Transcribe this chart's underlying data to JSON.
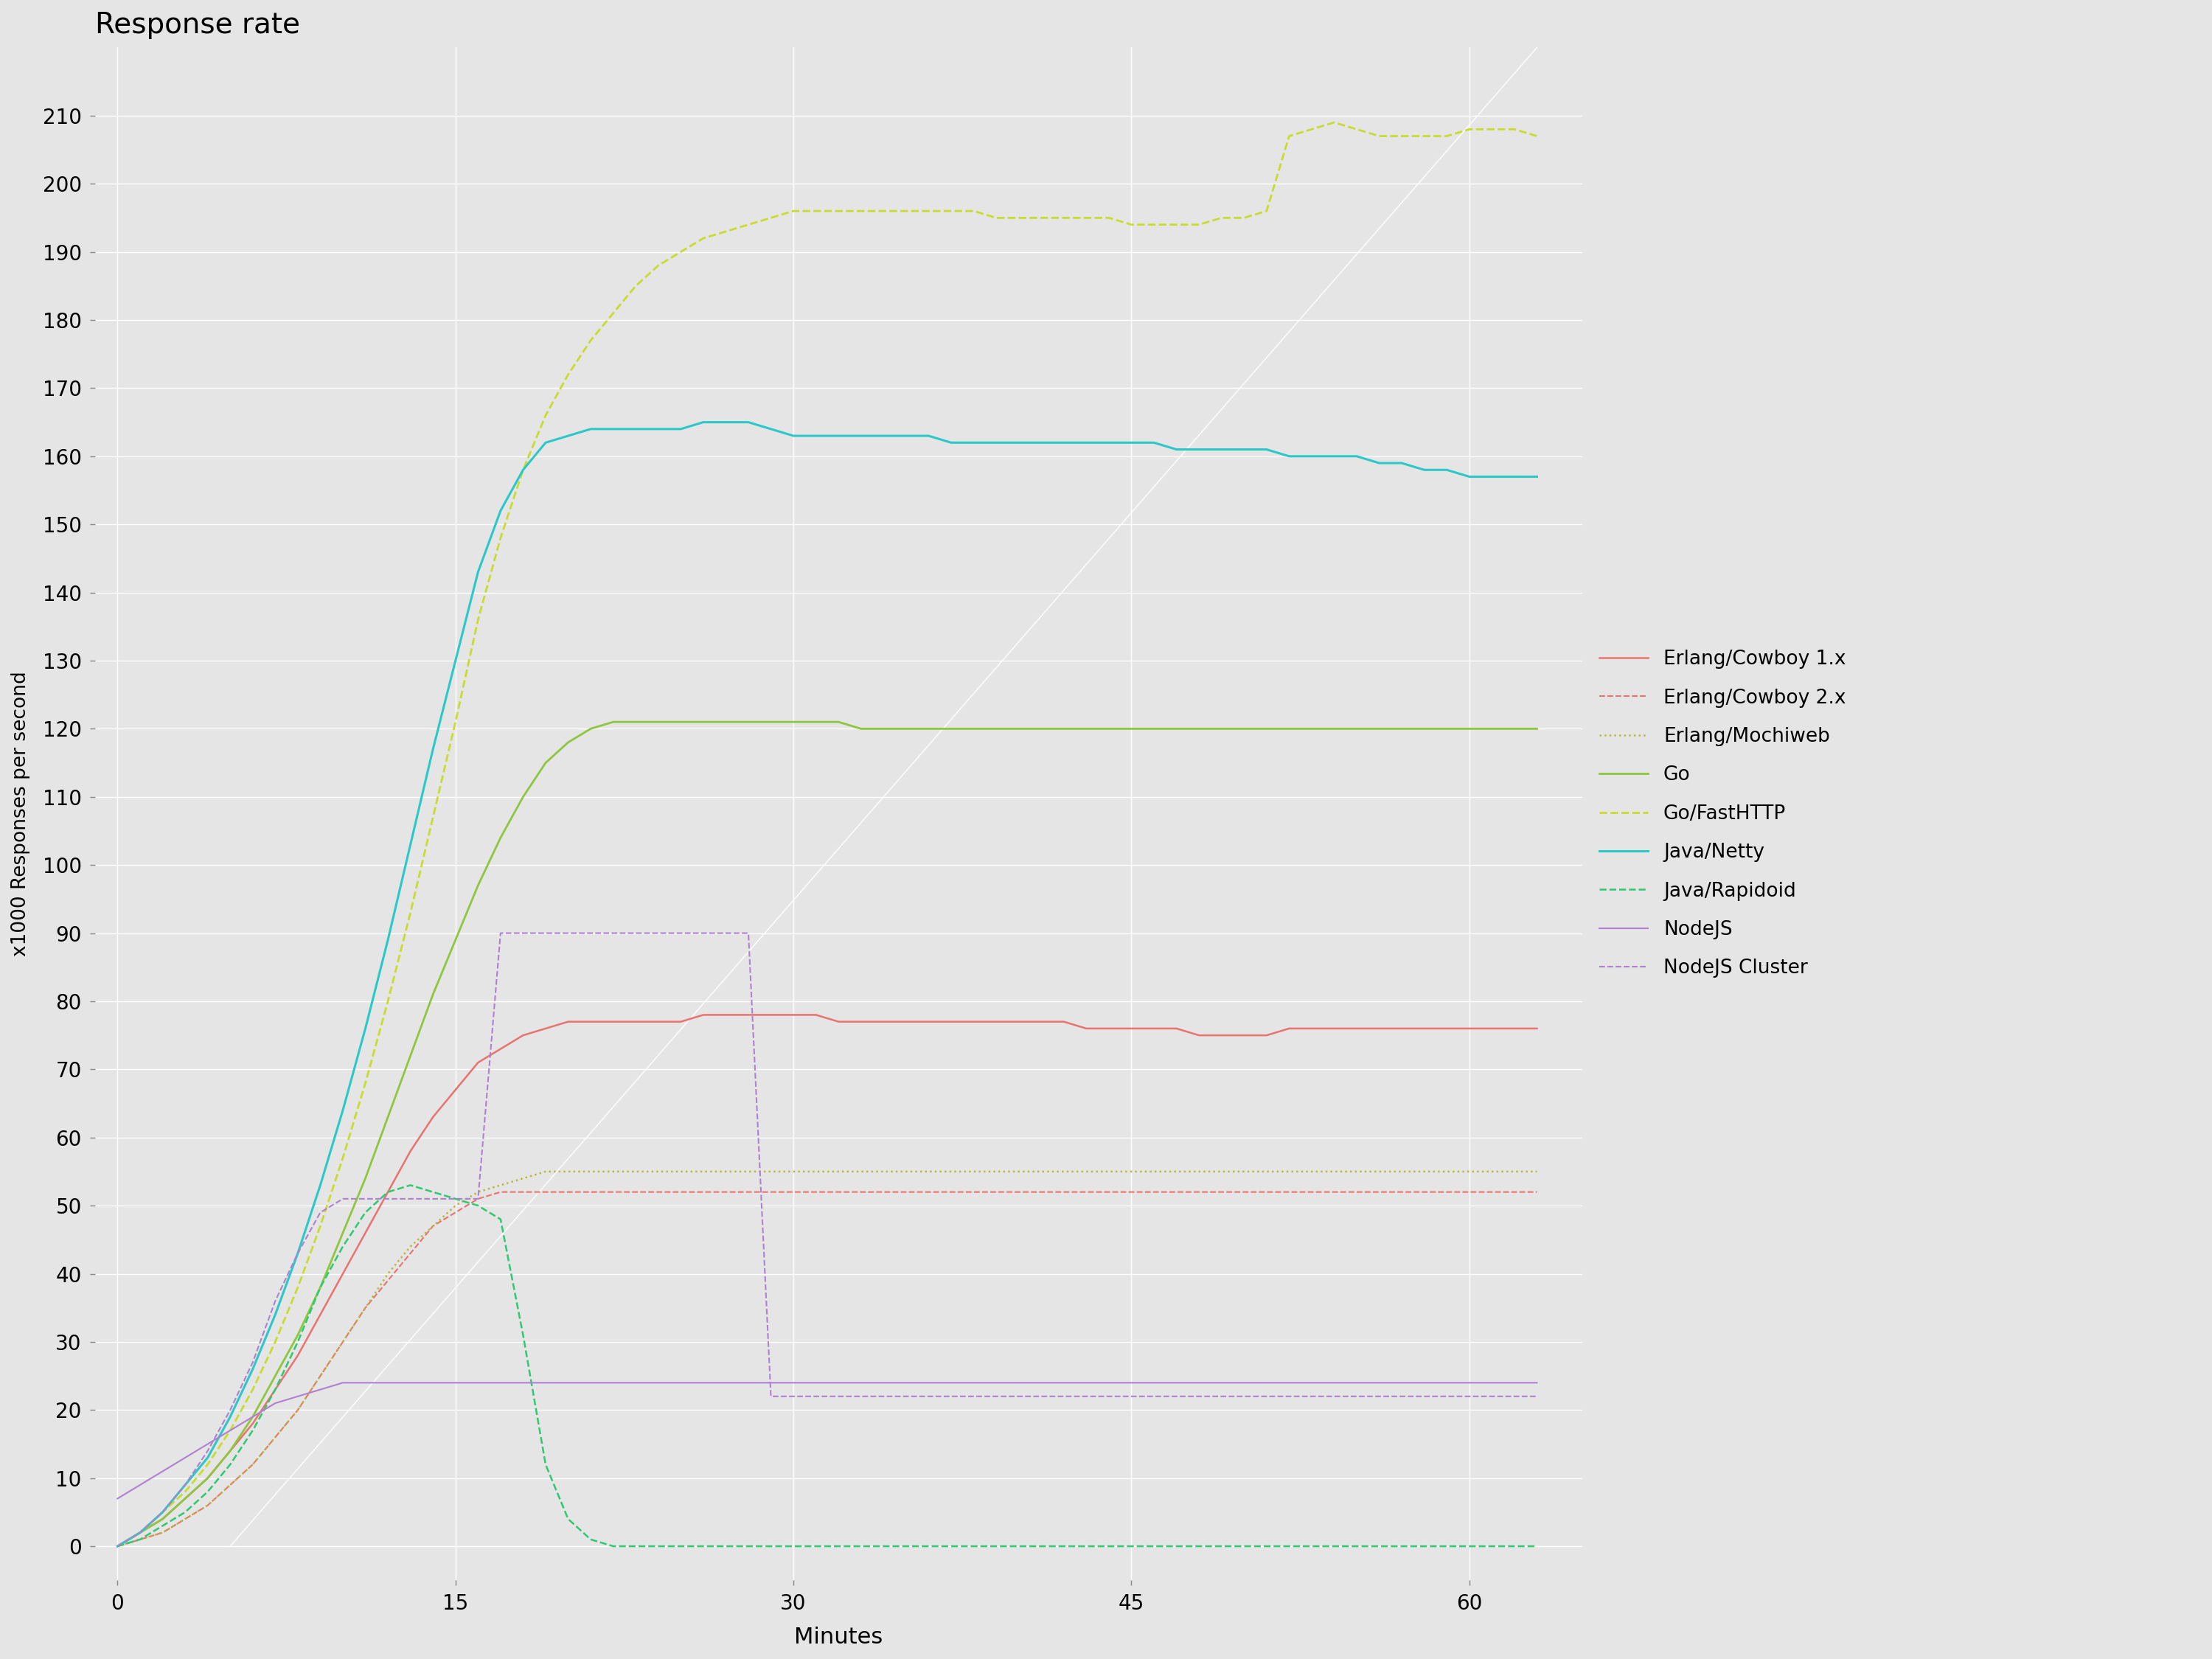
{
  "title": "Response rate",
  "xlabel": "Minutes",
  "ylabel": "x1000 Responses per second",
  "xlim": [
    -1,
    65
  ],
  "ylim": [
    -5,
    220
  ],
  "xticks": [
    0,
    15,
    30,
    45,
    60
  ],
  "yticks": [
    0,
    10,
    20,
    30,
    40,
    50,
    60,
    70,
    80,
    90,
    100,
    110,
    120,
    130,
    140,
    150,
    160,
    170,
    180,
    190,
    200,
    210
  ],
  "background_color": "#e5e5e5",
  "grid_color": "#ffffff",
  "series": {
    "erlang_cowboy1": {
      "label": "Erlang/Cowboy 1.x",
      "color": "#e8736f",
      "linestyle": "-",
      "linewidth": 1.8,
      "x": [
        0,
        1,
        2,
        3,
        4,
        5,
        6,
        7,
        8,
        9,
        10,
        11,
        12,
        13,
        14,
        15,
        16,
        17,
        18,
        19,
        20,
        21,
        22,
        23,
        24,
        25,
        26,
        27,
        28,
        29,
        30,
        31,
        32,
        33,
        34,
        35,
        36,
        37,
        38,
        39,
        40,
        41,
        42,
        43,
        44,
        45,
        46,
        47,
        48,
        49,
        50,
        51,
        52,
        53,
        54,
        55,
        56,
        57,
        58,
        59,
        60,
        61,
        62,
        63
      ],
      "y": [
        0,
        2,
        4,
        7,
        10,
        14,
        18,
        23,
        28,
        34,
        40,
        46,
        52,
        58,
        63,
        67,
        71,
        73,
        75,
        76,
        77,
        77,
        77,
        77,
        77,
        77,
        78,
        78,
        78,
        78,
        78,
        78,
        77,
        77,
        77,
        77,
        77,
        77,
        77,
        77,
        77,
        77,
        77,
        76,
        76,
        76,
        76,
        76,
        75,
        75,
        75,
        75,
        76,
        76,
        76,
        76,
        76,
        76,
        76,
        76,
        76,
        76,
        76,
        76
      ]
    },
    "erlang_cowboy2": {
      "label": "Erlang/Cowboy 2.x",
      "color": "#e8736f",
      "linestyle": "--",
      "linewidth": 1.5,
      "x": [
        0,
        1,
        2,
        3,
        4,
        5,
        6,
        7,
        8,
        9,
        10,
        11,
        12,
        13,
        14,
        15,
        16,
        17,
        18,
        19,
        20,
        21,
        22,
        23,
        24,
        25,
        26,
        27,
        28,
        29,
        30,
        31,
        32,
        33,
        34,
        35,
        36,
        37,
        38,
        39,
        40,
        41,
        42,
        43,
        44,
        45,
        46,
        47,
        48,
        49,
        50,
        51,
        52,
        53,
        54,
        55,
        56,
        57,
        58,
        59,
        60,
        61,
        62,
        63
      ],
      "y": [
        0,
        1,
        2,
        4,
        6,
        9,
        12,
        16,
        20,
        25,
        30,
        35,
        39,
        43,
        47,
        49,
        51,
        52,
        52,
        52,
        52,
        52,
        52,
        52,
        52,
        52,
        52,
        52,
        52,
        52,
        52,
        52,
        52,
        52,
        52,
        52,
        52,
        52,
        52,
        52,
        52,
        52,
        52,
        52,
        52,
        52,
        52,
        52,
        52,
        52,
        52,
        52,
        52,
        52,
        52,
        52,
        52,
        52,
        52,
        52,
        52,
        52,
        52,
        52
      ]
    },
    "erlang_mochiweb": {
      "label": "Erlang/Mochiweb",
      "color": "#b8b840",
      "linestyle": ":",
      "linewidth": 1.8,
      "x": [
        0,
        1,
        2,
        3,
        4,
        5,
        6,
        7,
        8,
        9,
        10,
        11,
        12,
        13,
        14,
        15,
        16,
        17,
        18,
        19,
        20,
        21,
        22,
        23,
        24,
        25,
        26,
        27,
        28,
        29,
        30,
        31,
        32,
        33,
        34,
        35,
        36,
        37,
        38,
        39,
        40,
        41,
        42,
        43,
        44,
        45,
        46,
        47,
        48,
        49,
        50,
        51,
        52,
        53,
        54,
        55,
        56,
        57,
        58,
        59,
        60,
        61,
        62,
        63
      ],
      "y": [
        0,
        1,
        2,
        4,
        6,
        9,
        12,
        16,
        20,
        25,
        30,
        35,
        40,
        44,
        47,
        50,
        52,
        53,
        54,
        55,
        55,
        55,
        55,
        55,
        55,
        55,
        55,
        55,
        55,
        55,
        55,
        55,
        55,
        55,
        55,
        55,
        55,
        55,
        55,
        55,
        55,
        55,
        55,
        55,
        55,
        55,
        55,
        55,
        55,
        55,
        55,
        55,
        55,
        55,
        55,
        55,
        55,
        55,
        55,
        55,
        55,
        55,
        55,
        55
      ]
    },
    "go": {
      "label": "Go",
      "color": "#8ec63f",
      "linestyle": "-",
      "linewidth": 2.0,
      "x": [
        0,
        1,
        2,
        3,
        4,
        5,
        6,
        7,
        8,
        9,
        10,
        11,
        12,
        13,
        14,
        15,
        16,
        17,
        18,
        19,
        20,
        21,
        22,
        23,
        24,
        25,
        26,
        27,
        28,
        29,
        30,
        31,
        32,
        33,
        34,
        35,
        36,
        37,
        38,
        39,
        40,
        41,
        42,
        43,
        44,
        45,
        46,
        47,
        48,
        49,
        50,
        51,
        52,
        53,
        54,
        55,
        56,
        57,
        58,
        59,
        60,
        61,
        62,
        63
      ],
      "y": [
        0,
        2,
        4,
        7,
        10,
        14,
        19,
        25,
        31,
        38,
        46,
        54,
        63,
        72,
        81,
        89,
        97,
        104,
        110,
        115,
        118,
        120,
        121,
        121,
        121,
        121,
        121,
        121,
        121,
        121,
        121,
        121,
        121,
        120,
        120,
        120,
        120,
        120,
        120,
        120,
        120,
        120,
        120,
        120,
        120,
        120,
        120,
        120,
        120,
        120,
        120,
        120,
        120,
        120,
        120,
        120,
        120,
        120,
        120,
        120,
        120,
        120,
        120,
        120
      ]
    },
    "go_fasthttp": {
      "label": "Go/FastHTTP",
      "color": "#c8dc30",
      "linestyle": "--",
      "linewidth": 2.0,
      "x": [
        0,
        1,
        2,
        3,
        4,
        5,
        6,
        7,
        8,
        9,
        10,
        11,
        12,
        13,
        14,
        15,
        16,
        17,
        18,
        19,
        20,
        21,
        22,
        23,
        24,
        25,
        26,
        27,
        28,
        29,
        30,
        31,
        32,
        33,
        34,
        35,
        36,
        37,
        38,
        39,
        40,
        41,
        42,
        43,
        44,
        45,
        46,
        47,
        48,
        49,
        50,
        51,
        52,
        53,
        54,
        55,
        56,
        57,
        58,
        59,
        60,
        61,
        62,
        63
      ],
      "y": [
        0,
        2,
        5,
        8,
        12,
        17,
        23,
        30,
        38,
        47,
        57,
        68,
        80,
        93,
        107,
        121,
        136,
        148,
        158,
        166,
        172,
        177,
        181,
        185,
        188,
        190,
        192,
        193,
        194,
        195,
        196,
        196,
        196,
        196,
        196,
        196,
        196,
        196,
        196,
        195,
        195,
        195,
        195,
        195,
        195,
        194,
        194,
        194,
        194,
        195,
        195,
        196,
        207,
        208,
        209,
        208,
        207,
        207,
        207,
        207,
        208,
        208,
        208,
        207
      ]
    },
    "java_netty": {
      "label": "Java/Netty",
      "color": "#2cc8c8",
      "linestyle": "-",
      "linewidth": 2.2,
      "x": [
        0,
        1,
        2,
        3,
        4,
        5,
        6,
        7,
        8,
        9,
        10,
        11,
        12,
        13,
        14,
        15,
        16,
        17,
        18,
        19,
        20,
        21,
        22,
        23,
        24,
        25,
        26,
        27,
        28,
        29,
        30,
        31,
        32,
        33,
        34,
        35,
        36,
        37,
        38,
        39,
        40,
        41,
        42,
        43,
        44,
        45,
        46,
        47,
        48,
        49,
        50,
        51,
        52,
        53,
        54,
        55,
        56,
        57,
        58,
        59,
        60,
        61,
        62,
        63
      ],
      "y": [
        0,
        2,
        5,
        9,
        13,
        19,
        26,
        34,
        43,
        53,
        64,
        76,
        89,
        103,
        117,
        130,
        143,
        152,
        158,
        162,
        163,
        164,
        164,
        164,
        164,
        164,
        165,
        165,
        165,
        164,
        163,
        163,
        163,
        163,
        163,
        163,
        163,
        162,
        162,
        162,
        162,
        162,
        162,
        162,
        162,
        162,
        162,
        161,
        161,
        161,
        161,
        161,
        160,
        160,
        160,
        160,
        159,
        159,
        158,
        158,
        157,
        157,
        157,
        157
      ]
    },
    "java_rapidoid": {
      "label": "Java/Rapidoid",
      "color": "#30c870",
      "linestyle": "--",
      "linewidth": 1.8,
      "x": [
        0,
        1,
        2,
        3,
        4,
        5,
        6,
        7,
        8,
        9,
        10,
        11,
        12,
        13,
        14,
        15,
        16,
        17,
        18,
        19,
        20,
        21,
        22,
        23,
        24,
        25,
        26,
        27,
        28,
        29,
        30,
        31,
        32,
        33,
        34,
        35,
        36,
        37,
        38,
        39,
        40,
        41,
        42,
        43,
        44,
        45,
        46,
        47,
        48,
        49,
        50,
        51,
        52,
        53,
        54,
        55,
        56,
        57,
        58,
        59,
        60,
        61,
        62,
        63
      ],
      "y": [
        0,
        1,
        3,
        5,
        8,
        12,
        17,
        23,
        30,
        38,
        44,
        49,
        52,
        53,
        52,
        51,
        50,
        48,
        31,
        12,
        4,
        1,
        0,
        0,
        0,
        0,
        0,
        0,
        0,
        0,
        0,
        0,
        0,
        0,
        0,
        0,
        0,
        0,
        0,
        0,
        0,
        0,
        0,
        0,
        0,
        0,
        0,
        0,
        0,
        0,
        0,
        0,
        0,
        0,
        0,
        0,
        0,
        0,
        0,
        0,
        0,
        0,
        0,
        0
      ]
    },
    "nodejs": {
      "label": "NodeJS",
      "color": "#b080d0",
      "linestyle": "-",
      "linewidth": 1.5,
      "x": [
        0,
        1,
        2,
        3,
        4,
        5,
        6,
        7,
        8,
        9,
        10,
        11,
        12,
        13,
        14,
        15,
        16,
        17,
        18,
        19,
        20,
        21,
        22,
        23,
        24,
        25,
        26,
        27,
        28,
        29,
        30,
        31,
        32,
        33,
        34,
        35,
        36,
        37,
        38,
        39,
        40,
        41,
        42,
        43,
        44,
        45,
        46,
        47,
        48,
        49,
        50,
        51,
        52,
        53,
        54,
        55,
        56,
        57,
        58,
        59,
        60,
        61,
        62,
        63
      ],
      "y": [
        7,
        9,
        11,
        13,
        15,
        17,
        19,
        21,
        22,
        23,
        24,
        24,
        24,
        24,
        24,
        24,
        24,
        24,
        24,
        24,
        24,
        24,
        24,
        24,
        24,
        24,
        24,
        24,
        24,
        24,
        24,
        24,
        24,
        24,
        24,
        24,
        24,
        24,
        24,
        24,
        24,
        24,
        24,
        24,
        24,
        24,
        24,
        24,
        24,
        24,
        24,
        24,
        24,
        24,
        24,
        24,
        24,
        24,
        24,
        24,
        24,
        24,
        24,
        24
      ]
    },
    "nodejs_cluster": {
      "label": "NodeJS Cluster",
      "color": "#b080d0",
      "linestyle": "--",
      "linewidth": 1.5,
      "x": [
        0,
        1,
        2,
        3,
        4,
        5,
        6,
        7,
        8,
        9,
        10,
        11,
        12,
        13,
        14,
        15,
        16,
        17,
        18,
        19,
        20,
        21,
        22,
        23,
        24,
        25,
        26,
        27,
        28,
        29,
        30,
        31,
        32,
        33,
        34,
        35,
        36,
        37,
        38,
        39,
        40,
        41,
        42,
        43,
        44,
        45,
        46,
        47,
        48,
        49,
        50,
        51,
        52,
        53,
        54,
        55,
        56,
        57,
        58,
        59,
        60,
        61,
        62,
        63
      ],
      "y": [
        0,
        2,
        5,
        9,
        14,
        20,
        27,
        36,
        43,
        49,
        51,
        51,
        51,
        51,
        51,
        51,
        51,
        90,
        90,
        90,
        90,
        90,
        90,
        90,
        90,
        90,
        90,
        90,
        90,
        22,
        22,
        22,
        22,
        22,
        22,
        22,
        22,
        22,
        22,
        22,
        22,
        22,
        22,
        22,
        22,
        22,
        22,
        22,
        22,
        22,
        22,
        22,
        22,
        22,
        22,
        22,
        22,
        22,
        22,
        22,
        22,
        22,
        22,
        22
      ]
    }
  },
  "diagonal_line": {
    "x": [
      5,
      63
    ],
    "y": [
      0,
      220
    ],
    "color": "#ffffff",
    "linewidth": 1.2,
    "alpha": 0.85
  }
}
